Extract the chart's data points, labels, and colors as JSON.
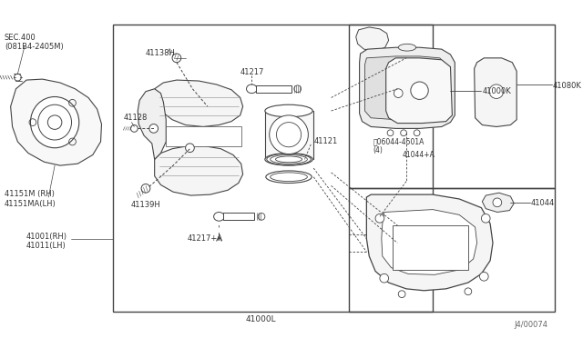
{
  "bg_color": "#ffffff",
  "line_color": "#444444",
  "text_color": "#333333",
  "fig_width": 6.4,
  "fig_height": 3.72,
  "dpi": 100,
  "watermark": "J4/00074",
  "parts": {
    "sec400": "SEC.400\n(081B4-2405M)",
    "p41001": "41001(RH)\n41011(LH)",
    "p41151": "41151M (RH)\n41151MA(LH)",
    "p41138H": "41138H",
    "p41128": "41128",
    "p41139H": "41139H",
    "p41217": "41217",
    "p41121": "41121",
    "p41217A": "41217+A",
    "p41000L": "41000L",
    "p06044": "と06044-4501A\n(4)",
    "p41044A": "41044+A",
    "p41000K": "41000K",
    "p41080K": "41080K",
    "p41044": "41044"
  }
}
